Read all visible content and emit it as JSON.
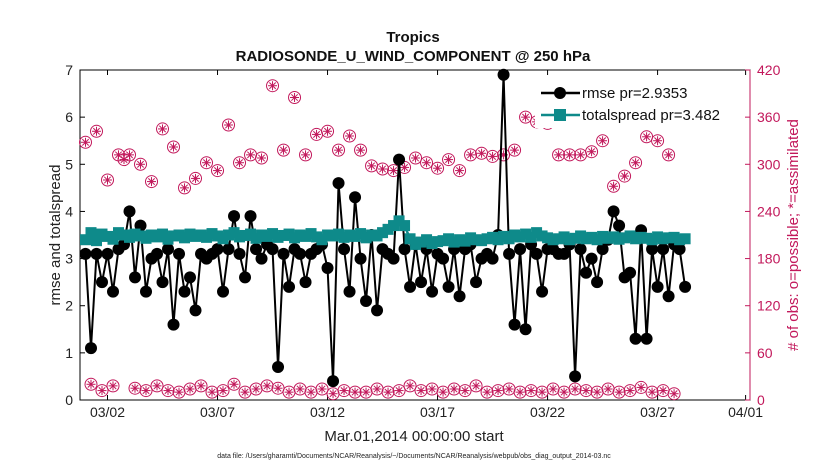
{
  "chart_data": {
    "type": "line",
    "title": "Tropics",
    "subtitle": "RADIOSONDE_U_WIND_COMPONENT @ 250 hPa",
    "xlabel": "Mar.01,2014 00:00:00 start",
    "ylabel_left": "rmse and totalspread",
    "ylabel_right": "# of obs: o=possible; *=assimilated",
    "footnote": "data file: /Users/gharamti/Documents/NCAR/Reanalysis/~/Documents/NCAR/Reanalysis/webpub/obs_diag_output_2014-03.nc",
    "xlim": [
      0.75,
      31.2
    ],
    "ylim_left": [
      0,
      7
    ],
    "ylim_right": [
      0,
      420
    ],
    "xticks": [
      {
        "x": 2,
        "label": "03/02"
      },
      {
        "x": 7,
        "label": "03/07"
      },
      {
        "x": 12,
        "label": "03/12"
      },
      {
        "x": 17,
        "label": "03/17"
      },
      {
        "x": 22,
        "label": "03/22"
      },
      {
        "x": 27,
        "label": "03/27"
      },
      {
        "x": 31,
        "label": "04/01"
      }
    ],
    "yticks_left": [
      0,
      1,
      2,
      3,
      4,
      5,
      6,
      7
    ],
    "yticks_right": [
      0,
      60,
      120,
      180,
      240,
      300,
      360,
      420
    ],
    "x_start": 1.0,
    "x_step": 0.25,
    "series": [
      {
        "name": "rmse",
        "legend": "rmse pr=2.9353",
        "axis": "left",
        "color": "#000000",
        "values": [
          3.1,
          1.1,
          3.1,
          2.5,
          3.1,
          2.3,
          3.2,
          3.3,
          4.0,
          2.6,
          3.7,
          2.3,
          3.0,
          3.1,
          2.5,
          3.2,
          1.6,
          3.1,
          2.3,
          2.6,
          1.9,
          3.1,
          3.0,
          3.1,
          3.2,
          2.3,
          3.2,
          3.9,
          3.1,
          2.6,
          3.9,
          3.2,
          3.0,
          3.3,
          3.2,
          0.7,
          3.1,
          2.4,
          3.2,
          3.1,
          2.5,
          3.1,
          3.2,
          3.3,
          2.8,
          0.4,
          4.6,
          3.2,
          2.3,
          4.3,
          3.0,
          2.1,
          3.5,
          1.9,
          3.2,
          3.1,
          3.0,
          5.1,
          3.2,
          2.4,
          3.3,
          2.5,
          3.2,
          2.3,
          3.1,
          3.0,
          2.4,
          3.2,
          2.2,
          3.2,
          3.3,
          2.5,
          3.0,
          3.1,
          3.0,
          3.5,
          6.9,
          3.1,
          1.6,
          3.2,
          1.5,
          3.3,
          3.1,
          2.3,
          3.2,
          3.2,
          3.1,
          3.1,
          3.3,
          0.5,
          3.2,
          2.7,
          3.0,
          2.5,
          3.2,
          3.4,
          4.0,
          3.7,
          2.6,
          2.7,
          1.3,
          3.6,
          1.3,
          3.2,
          2.4,
          3.2,
          2.2,
          3.3,
          3.2,
          2.4
        ]
      },
      {
        "name": "totalspread",
        "legend": "totalspread pr=3.482",
        "axis": "left",
        "color": "#0e8a8a",
        "values": [
          3.4,
          3.55,
          3.38,
          3.52,
          3.47,
          3.41,
          3.55,
          3.5,
          3.45,
          3.52,
          3.48,
          3.43,
          3.5,
          3.46,
          3.52,
          3.41,
          3.48,
          3.5,
          3.44,
          3.52,
          3.47,
          3.5,
          3.45,
          3.53,
          3.48,
          3.42,
          3.5,
          3.55,
          3.46,
          3.49,
          3.52,
          3.43,
          3.5,
          3.47,
          3.53,
          3.45,
          3.49,
          3.52,
          3.44,
          3.5,
          3.47,
          3.53,
          3.46,
          3.4,
          3.5,
          3.48,
          3.52,
          3.45,
          3.5,
          3.47,
          3.53,
          3.44,
          3.5,
          3.48,
          3.55,
          3.62,
          3.7,
          3.8,
          3.7,
          3.42,
          3.3,
          3.35,
          3.4,
          3.32,
          3.36,
          3.38,
          3.42,
          3.35,
          3.4,
          3.37,
          3.44,
          3.4,
          3.38,
          3.42,
          3.45,
          3.4,
          3.47,
          3.42,
          3.5,
          3.46,
          3.52,
          3.45,
          3.55,
          3.48,
          3.44,
          3.4,
          3.42,
          3.46,
          3.4,
          3.43,
          3.48,
          3.42,
          3.45,
          3.4,
          3.47,
          3.43,
          3.46,
          3.41,
          3.44,
          3.48,
          3.42,
          3.45,
          3.43,
          3.4,
          3.46,
          3.42,
          3.44,
          3.45,
          3.4,
          3.42
        ]
      },
      {
        "name": "possible",
        "legend": "o=possible",
        "axis": "right",
        "color": "#c2185b",
        "values": [
          328,
          20,
          342,
          12,
          280,
          18,
          312,
          306,
          312,
          15,
          300,
          12,
          278,
          18,
          345,
          12,
          322,
          10,
          270,
          14,
          282,
          18,
          302,
          10,
          292,
          12,
          350,
          20,
          302,
          10,
          312,
          14,
          308,
          18,
          400,
          15,
          318,
          10,
          385,
          14,
          312,
          10,
          338,
          14,
          342,
          8,
          318,
          12,
          336,
          10,
          318,
          10,
          298,
          14,
          294,
          10,
          292,
          12,
          296,
          18,
          308,
          12,
          302,
          14,
          295,
          10,
          306,
          14,
          292,
          12,
          312,
          18,
          314,
          10,
          310,
          12,
          312,
          14,
          318,
          10,
          360,
          12,
          354,
          10,
          352,
          14,
          312,
          10,
          312,
          14,
          312,
          12,
          316,
          10,
          330,
          14,
          272,
          10,
          285,
          12,
          302,
          16,
          335,
          10,
          330,
          12,
          312,
          8
        ]
      },
      {
        "name": "assimilated",
        "legend": "*=assimilated",
        "axis": "right",
        "color": "#c2185b",
        "values": [
          328,
          20,
          342,
          12,
          280,
          18,
          312,
          306,
          312,
          15,
          300,
          12,
          278,
          18,
          345,
          12,
          322,
          10,
          270,
          14,
          282,
          18,
          302,
          10,
          292,
          12,
          350,
          20,
          302,
          10,
          312,
          14,
          308,
          18,
          400,
          15,
          318,
          10,
          385,
          14,
          312,
          10,
          338,
          14,
          342,
          8,
          318,
          12,
          336,
          10,
          318,
          10,
          298,
          14,
          294,
          10,
          292,
          12,
          296,
          18,
          308,
          12,
          302,
          14,
          295,
          10,
          306,
          14,
          292,
          12,
          312,
          18,
          314,
          10,
          310,
          12,
          312,
          14,
          318,
          10,
          360,
          12,
          354,
          10,
          352,
          14,
          312,
          10,
          312,
          14,
          312,
          12,
          316,
          10,
          330,
          14,
          272,
          10,
          285,
          12,
          302,
          16,
          335,
          10,
          330,
          12,
          312,
          8
        ]
      }
    ]
  }
}
